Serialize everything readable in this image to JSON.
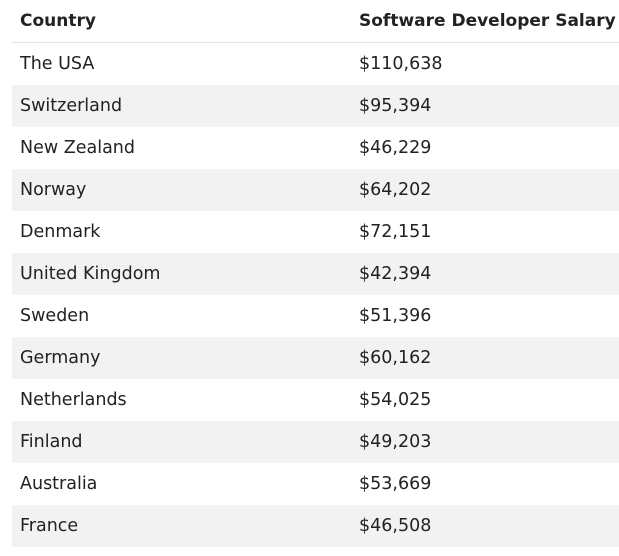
{
  "table": {
    "headers": [
      "Country",
      "Software Developer Salary"
    ],
    "rows": [
      [
        "The USA",
        "$110,638"
      ],
      [
        "Switzerland",
        "$95,394"
      ],
      [
        "New Zealand",
        "$46,229"
      ],
      [
        "Norway",
        "$64,202"
      ],
      [
        "Denmark",
        "$72,151"
      ],
      [
        "United Kingdom",
        "$42,394"
      ],
      [
        "Sweden",
        "$51,396"
      ],
      [
        "Germany",
        "$60,162"
      ],
      [
        "Netherlands",
        "$54,025"
      ],
      [
        "Finland",
        "$49,203"
      ],
      [
        "Australia",
        "$53,669"
      ],
      [
        "France",
        "$46,508"
      ]
    ]
  }
}
